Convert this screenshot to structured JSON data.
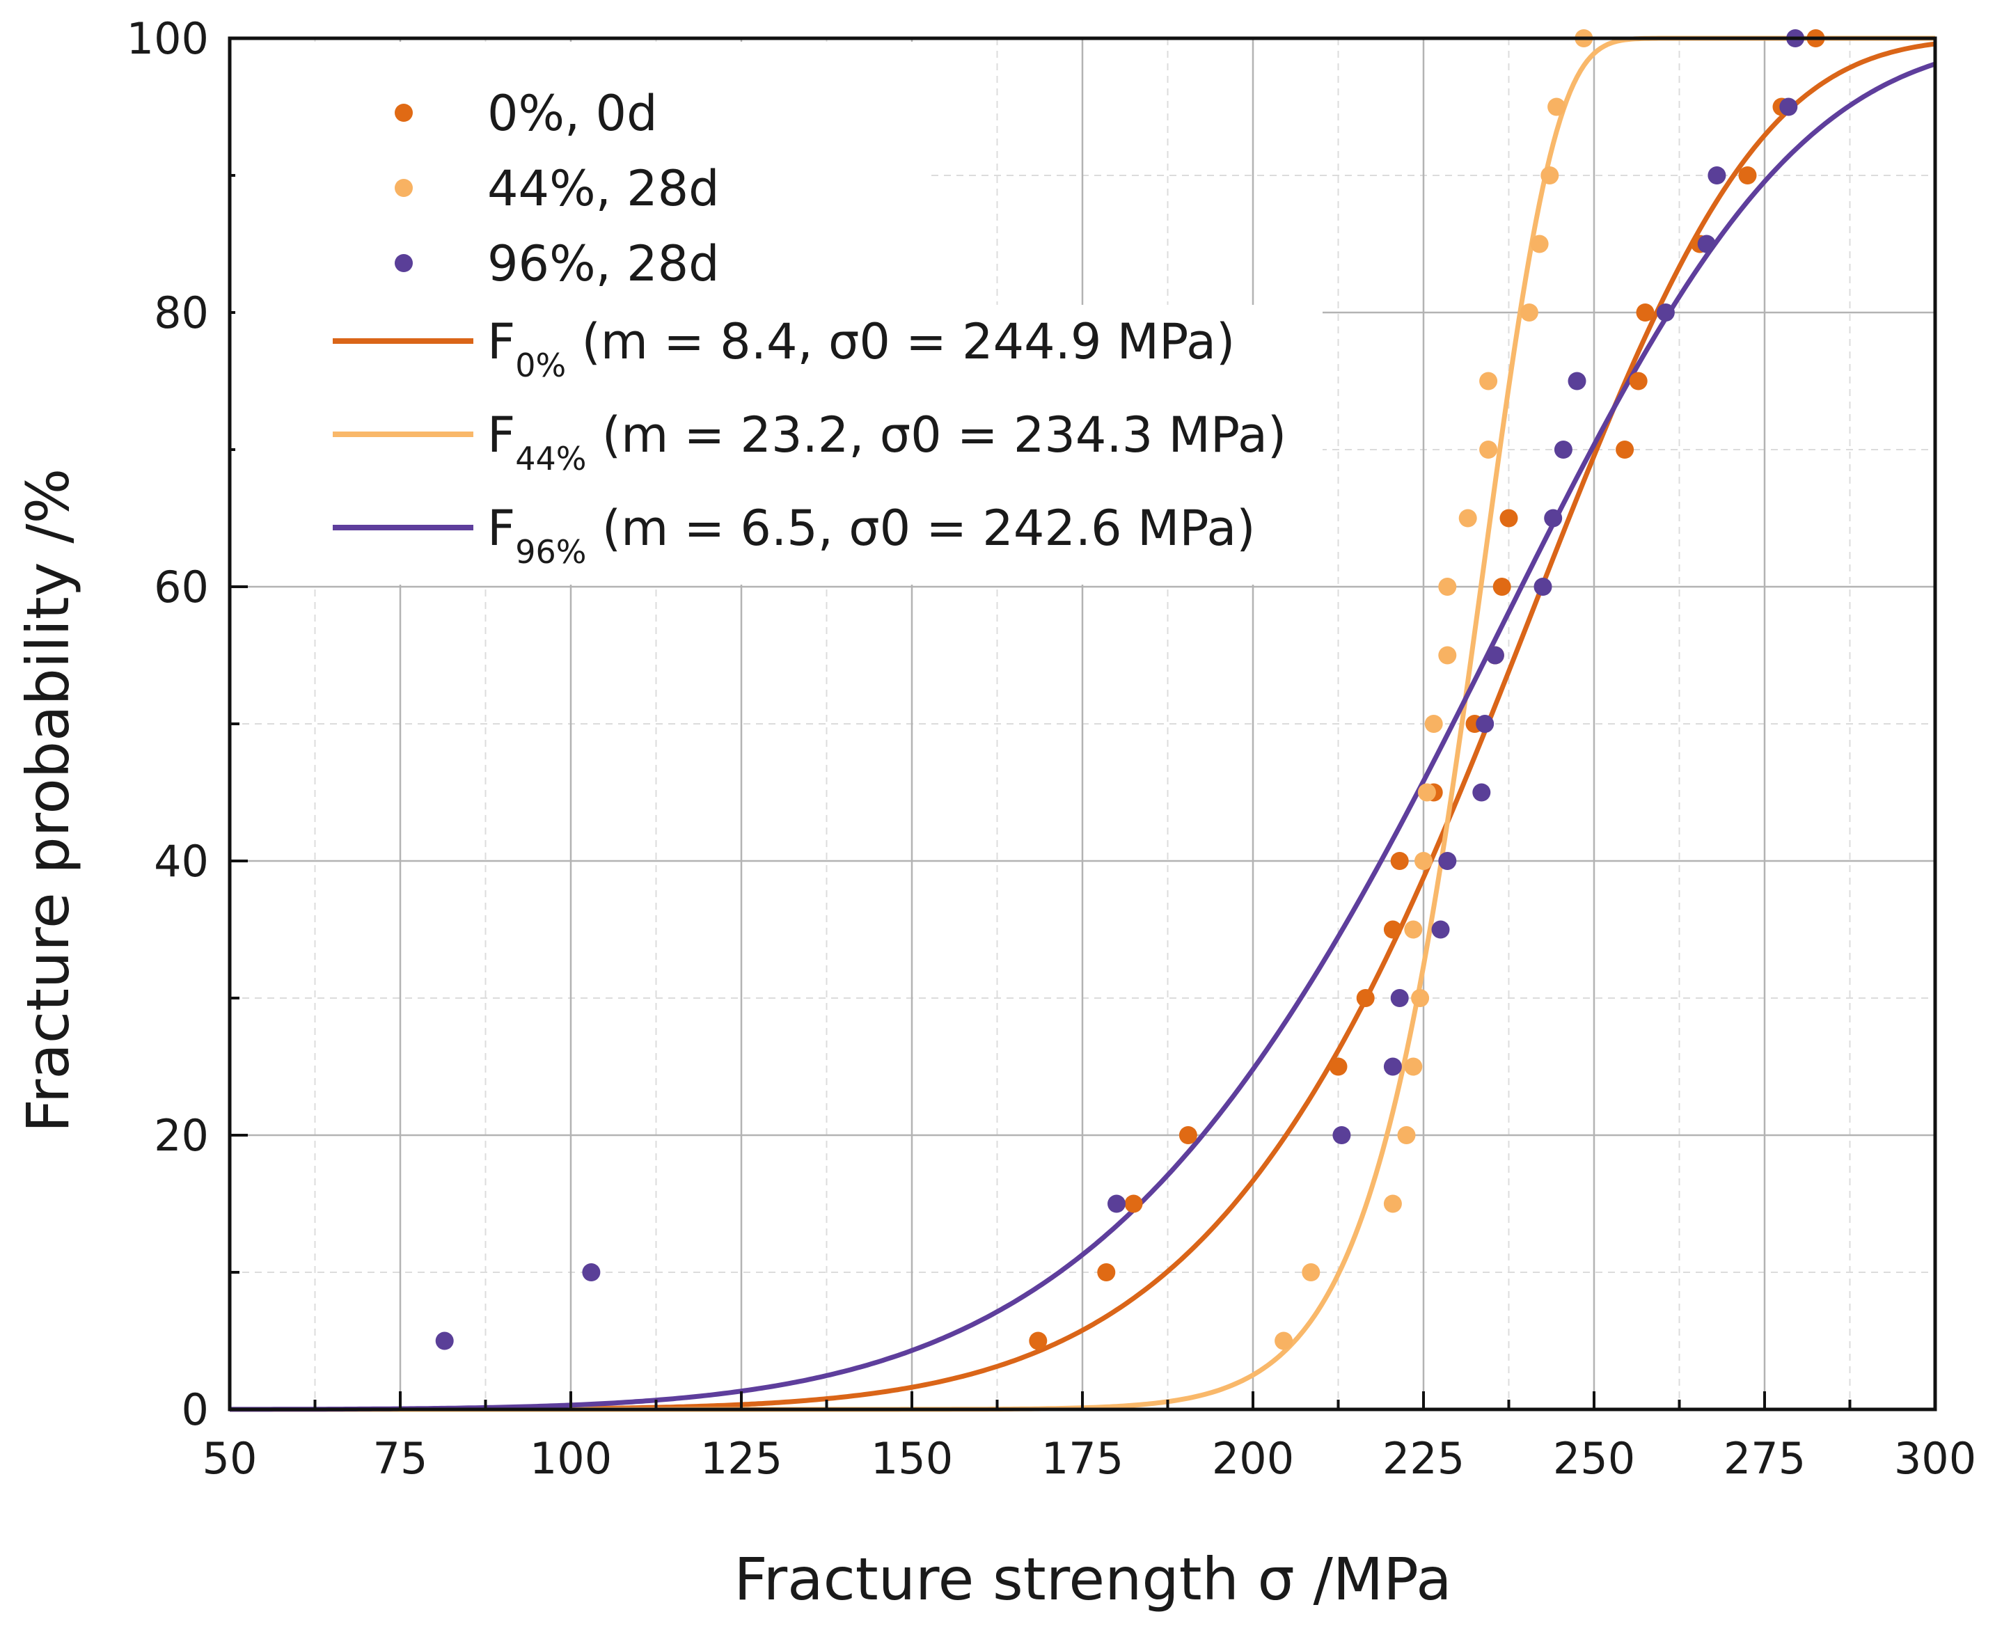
{
  "chart_data": {
    "type": "scatter",
    "title": "",
    "xlabel": "Fracture strength σ /MPa",
    "ylabel": "Fracture probability /%",
    "xlim": [
      50,
      300
    ],
    "ylim": [
      0,
      100
    ],
    "x_ticks": [
      50,
      75,
      100,
      125,
      150,
      175,
      200,
      225,
      250,
      275,
      300
    ],
    "y_ticks": [
      0,
      20,
      40,
      60,
      80,
      100
    ],
    "grid": true,
    "legend_position": "top-left",
    "scatter_series": [
      {
        "name": "0%, 0d",
        "color": "#E06A14",
        "points": [
          [
            168.5,
            5
          ],
          [
            178.5,
            10
          ],
          [
            182.5,
            15
          ],
          [
            190.5,
            20
          ],
          [
            212.5,
            25
          ],
          [
            216.5,
            30
          ],
          [
            220.5,
            35
          ],
          [
            221.5,
            40
          ],
          [
            226.5,
            45
          ],
          [
            232.5,
            50
          ],
          [
            235.5,
            55
          ],
          [
            236.5,
            60
          ],
          [
            237.5,
            65
          ],
          [
            254.5,
            70
          ],
          [
            256.5,
            75
          ],
          [
            257.5,
            80
          ],
          [
            265.5,
            85
          ],
          [
            272.5,
            90
          ],
          [
            277.5,
            95
          ],
          [
            282.5,
            100
          ]
        ]
      },
      {
        "name": "44%, 28d",
        "color": "#F8B262",
        "points": [
          [
            204.5,
            5
          ],
          [
            208.5,
            10
          ],
          [
            220.5,
            15
          ],
          [
            222.5,
            20
          ],
          [
            223.5,
            25
          ],
          [
            224.5,
            30
          ],
          [
            223.5,
            35
          ],
          [
            225.0,
            40
          ],
          [
            225.5,
            45
          ],
          [
            226.5,
            50
          ],
          [
            228.5,
            55
          ],
          [
            228.5,
            60
          ],
          [
            231.5,
            65
          ],
          [
            234.5,
            70
          ],
          [
            234.5,
            75
          ],
          [
            240.5,
            80
          ],
          [
            242.0,
            85
          ],
          [
            243.5,
            90
          ],
          [
            244.5,
            95
          ],
          [
            248.5,
            100
          ]
        ]
      },
      {
        "name": "96%, 28d",
        "color": "#5A3F98",
        "points": [
          [
            81.5,
            5
          ],
          [
            103.0,
            10
          ],
          [
            180.0,
            15
          ],
          [
            213.0,
            20
          ],
          [
            220.5,
            25
          ],
          [
            221.5,
            30
          ],
          [
            227.5,
            35
          ],
          [
            228.5,
            40
          ],
          [
            233.5,
            45
          ],
          [
            234.0,
            50
          ],
          [
            235.5,
            55
          ],
          [
            242.5,
            60
          ],
          [
            244.0,
            65
          ],
          [
            245.5,
            70
          ],
          [
            247.5,
            75
          ],
          [
            260.5,
            80
          ],
          [
            266.5,
            85
          ],
          [
            268.0,
            90
          ],
          [
            278.5,
            95
          ],
          [
            279.5,
            100
          ]
        ]
      }
    ],
    "fit_series": [
      {
        "name_main": "F",
        "name_sub": "0%",
        "label_rest": " (m = 8.4,  σ0 = 244.9 MPa)",
        "m": 8.4,
        "sigma0": 244.9,
        "color": "#DA6518"
      },
      {
        "name_main": "F",
        "name_sub": "44%",
        "label_rest": " (m = 23.2, σ0 = 234.3 MPa)",
        "m": 23.2,
        "sigma0": 234.3,
        "color": "#F9B86A"
      },
      {
        "name_main": "F",
        "name_sub": "96%",
        "label_rest": " (m = 6.5, σ0 = 242.6 MPa)",
        "m": 6.5,
        "sigma0": 242.6,
        "color": "#5E3E9C"
      }
    ]
  }
}
